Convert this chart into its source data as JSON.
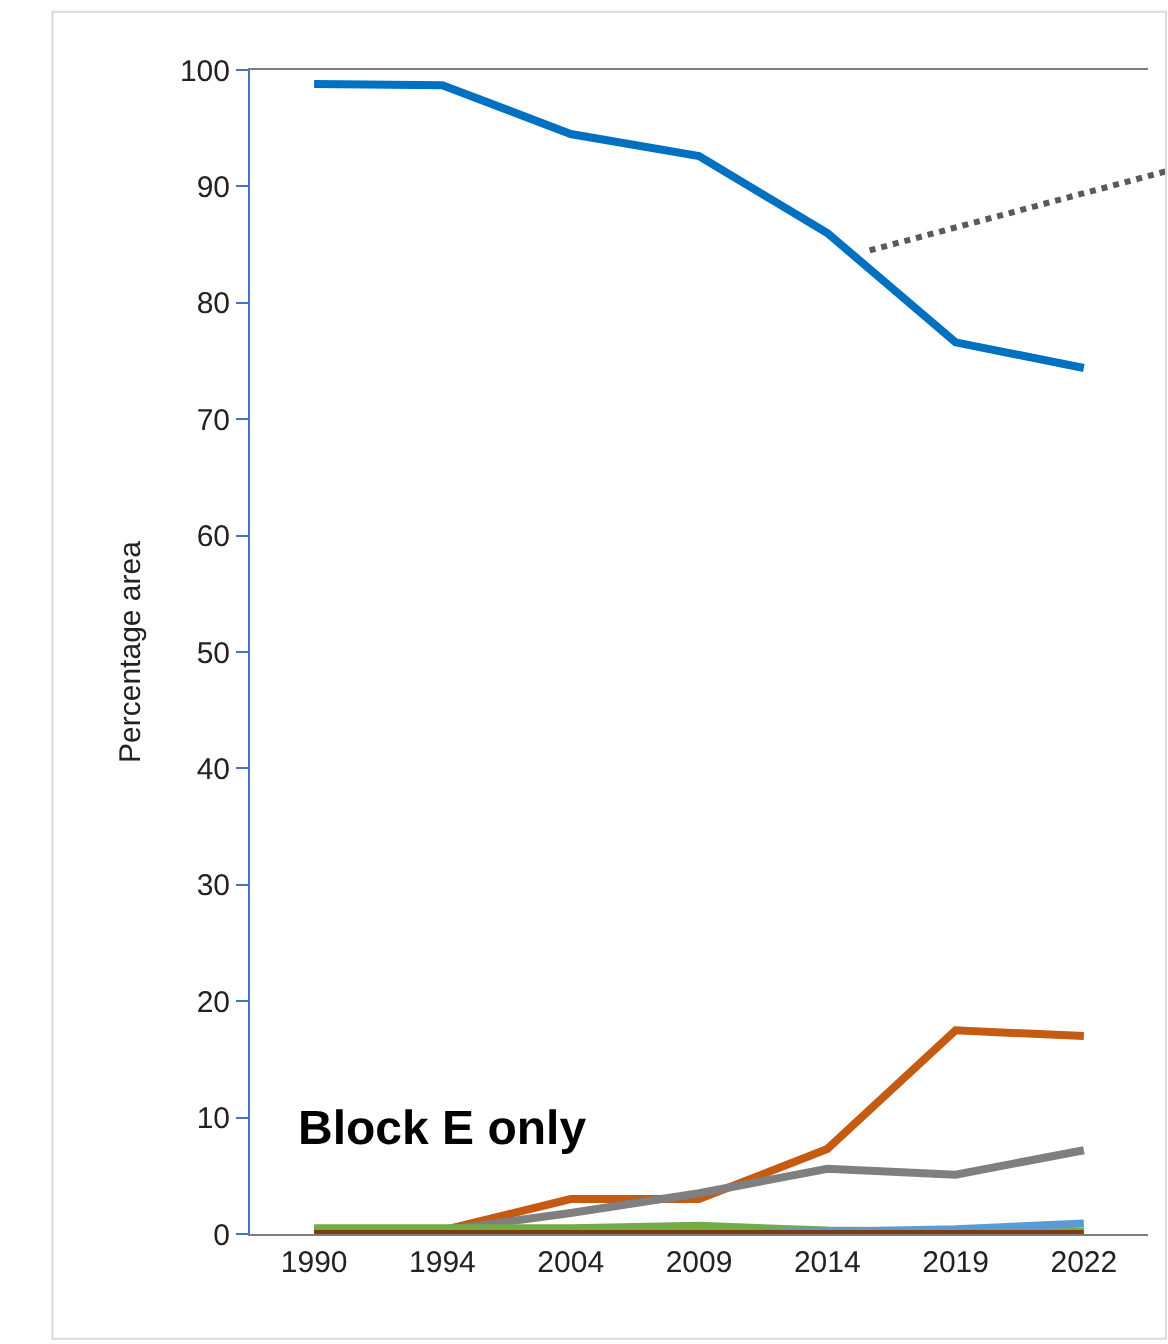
{
  "chart_data": {
    "type": "line",
    "ylabel": "Percentage area",
    "categories": [
      "1990",
      "1994",
      "2004",
      "2009",
      "2014",
      "2019",
      "2022"
    ],
    "series": [
      {
        "color": "#0070c0",
        "values": [
          98.8,
          98.7,
          94.5,
          92.6,
          86.0,
          76.6,
          74.4
        ]
      },
      {
        "color": "#c55a11",
        "values": [
          0.3,
          0.3,
          3.0,
          3.0,
          7.3,
          17.5,
          17.0
        ]
      },
      {
        "color": "#7f7f7f",
        "values": [
          0.3,
          0.3,
          1.8,
          3.5,
          5.6,
          5.1,
          7.2
        ]
      },
      {
        "color": "#70ad47",
        "values": [
          0.5,
          0.5,
          0.5,
          0.7,
          0.3,
          0.2,
          0.2
        ]
      },
      {
        "color": "#5b9bd5",
        "values": [
          null,
          null,
          0.0,
          0.0,
          0.2,
          0.4,
          0.9
        ]
      },
      {
        "color": "#843c0c",
        "values": [
          0.0,
          0.0,
          0.0,
          0.0,
          0.0,
          0.0,
          0.0
        ]
      }
    ],
    "ylim": [
      0,
      100
    ],
    "yticks": [
      0,
      10,
      20,
      30,
      40,
      50,
      60,
      70,
      80,
      90,
      100
    ],
    "marker": "none",
    "line_style": "solid",
    "annotations": [
      "Block E only"
    ]
  }
}
